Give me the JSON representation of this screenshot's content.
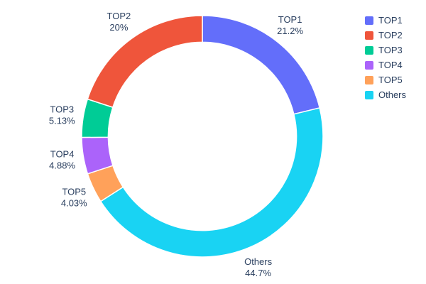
{
  "figure": {
    "background": "#ffffff",
    "text_color": "#2a3f5f",
    "slice_border_color": "#ffffff"
  },
  "chart_data": {
    "type": "pie",
    "subtype": "donut",
    "hole": 0.78,
    "title": "",
    "labels": [
      "TOP1",
      "TOP2",
      "TOP3",
      "TOP4",
      "TOP5",
      "Others"
    ],
    "values": [
      21.2,
      20,
      5.13,
      4.88,
      4.03,
      44.7
    ],
    "percent_labels": [
      "21.2%",
      "20%",
      "5.13%",
      "4.88%",
      "4.03%",
      "44.7%"
    ],
    "colors": [
      "#636efa",
      "#ef553b",
      "#00cc96",
      "#ab63fa",
      "#ffa15a",
      "#19d3f3"
    ],
    "draw_order": [
      0,
      5,
      4,
      3,
      2,
      1
    ],
    "start_angle_deg": 0,
    "direction": "clockwise",
    "labels_position": "outside",
    "legend": {
      "position": "right",
      "entries": [
        "TOP1",
        "TOP2",
        "TOP3",
        "TOP4",
        "TOP5",
        "Others"
      ]
    }
  }
}
